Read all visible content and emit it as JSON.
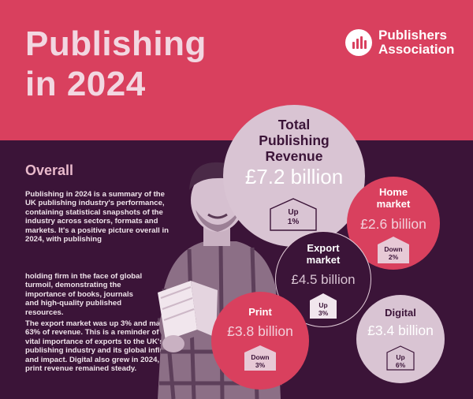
{
  "header": {
    "title_line1": "Publishing",
    "title_line2": "in 2024",
    "logo_line1": "Publishers",
    "logo_line2": "Association"
  },
  "overall": {
    "heading": "Overall",
    "para1": "Publishing in 2024 is a summary of the UK publishing industry's performance, containing statistical snapshots of the industry across sectors, formats and markets. It's a positive picture overall in 2024, with publishing",
    "para1b": "holding firm in the face of global turmoil, demonstrating the importance of books, journals and high-quality published resources.",
    "para2": "The export market was up 3% and makes up 63% of revenue. This is a reminder of the vital importance of exports to the UK's publishing industry and its global influence and impact. Digital also grew in 2024, while print revenue remained steady."
  },
  "stats": {
    "total": {
      "title1": "Total",
      "title2": "Publishing",
      "title3": "Revenue",
      "value": "£7.2 billion",
      "dir": "Up",
      "pct": "1%"
    },
    "home": {
      "title1": "Home",
      "title2": "market",
      "value": "£2.6 billion",
      "dir": "Down",
      "pct": "2%"
    },
    "export": {
      "title1": "Export",
      "title2": "market",
      "value": "£4.5 billion",
      "dir": "Up",
      "pct": "3%"
    },
    "print": {
      "title1": "Print",
      "value": "£3.8 billion",
      "dir": "Down",
      "pct": "3%"
    },
    "digital": {
      "title1": "Digital",
      "value": "£3.4 billion",
      "dir": "Up",
      "pct": "6%"
    }
  },
  "colors": {
    "pink": "#d9405e",
    "plum": "#3b1438",
    "lilac": "#d9c4d3"
  }
}
